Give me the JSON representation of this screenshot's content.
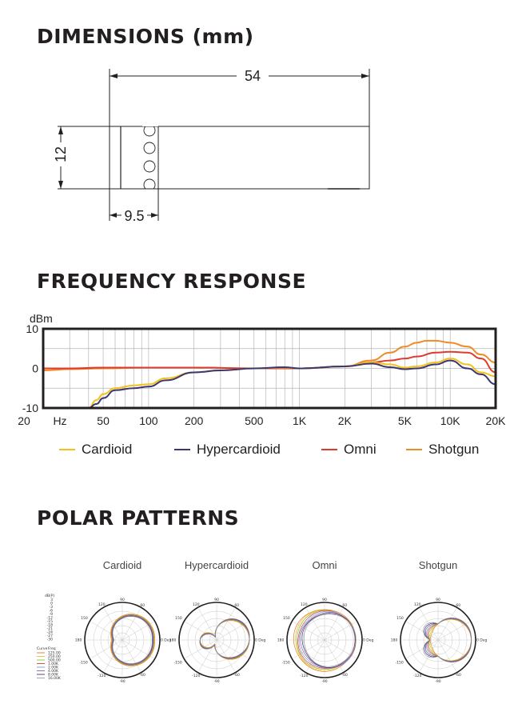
{
  "dimensions": {
    "title": "DIMENSIONS (mm)",
    "length": "54",
    "height": "12",
    "cap": "9.5"
  },
  "frequency": {
    "title": "FREQUENCY RESPONSE",
    "unit": "dBm",
    "y_ticks": [
      "10",
      "0",
      "-10"
    ],
    "x_ticks": [
      "20",
      "Hz",
      "50",
      "100",
      "200",
      "500",
      "1K",
      "2K",
      "5K",
      "10K",
      "20K"
    ],
    "legend": [
      {
        "name": "Cardioid",
        "color": "#f2c21b"
      },
      {
        "name": "Hypercardioid",
        "color": "#3d3670"
      },
      {
        "name": "Omni",
        "color": "#e03a2f"
      },
      {
        "name": "Shotgun",
        "color": "#f08a24"
      }
    ]
  },
  "chart_data": {
    "type": "line",
    "title": "FREQUENCY RESPONSE",
    "ylabel": "dBm",
    "xlabel": "",
    "xscale": "log",
    "xlim": [
      20,
      20000
    ],
    "ylim": [
      -10,
      10
    ],
    "grid": true,
    "legend_position": "bottom",
    "series": [
      {
        "name": "Cardioid",
        "x": [
          40,
          45,
          50,
          60,
          80,
          100,
          130,
          200,
          300,
          500,
          800,
          1000,
          2000,
          3000,
          4000,
          5000,
          6000,
          8000,
          10000,
          13000,
          16000,
          20000
        ],
        "y": [
          -10,
          -8,
          -6.5,
          -5,
          -4.3,
          -4,
          -2.5,
          -1,
          -0.5,
          0,
          0.2,
          0,
          0.5,
          1.5,
          1,
          0.2,
          0.5,
          1.5,
          2.5,
          1,
          -1,
          -2
        ]
      },
      {
        "name": "Hypercardioid",
        "x": [
          40,
          45,
          50,
          60,
          80,
          100,
          130,
          200,
          300,
          500,
          800,
          1000,
          2000,
          3000,
          4000,
          5000,
          6000,
          8000,
          10000,
          13000,
          16000,
          20000
        ],
        "y": [
          -10,
          -9,
          -7.5,
          -5.5,
          -5,
          -4.6,
          -3,
          -1,
          -0.5,
          0,
          0.3,
          0,
          0.5,
          1.2,
          0.3,
          -0.2,
          0,
          1,
          2,
          0,
          -1.5,
          -4
        ]
      },
      {
        "name": "Omni",
        "x": [
          20,
          30,
          50,
          100,
          200,
          500,
          1000,
          2000,
          3000,
          4000,
          5000,
          6000,
          8000,
          10000,
          13000,
          16000,
          20000
        ],
        "y": [
          0,
          0,
          0.2,
          0.2,
          0.2,
          0,
          0,
          0.5,
          1.5,
          2,
          2.5,
          3,
          4,
          4.2,
          4,
          2.5,
          -1
        ]
      },
      {
        "name": "Shotgun",
        "x": [
          20,
          30,
          50,
          100,
          200,
          500,
          1000,
          2000,
          3000,
          4000,
          5000,
          6000,
          7000,
          8000,
          10000,
          13000,
          16000,
          20000
        ],
        "y": [
          -0.5,
          -0.2,
          0,
          0.2,
          0.2,
          0,
          0,
          0.5,
          2,
          4,
          5.5,
          6.5,
          7,
          7,
          6.5,
          5.5,
          3.5,
          1.5
        ]
      }
    ]
  },
  "polar": {
    "title": "POLAR PATTERNS",
    "patterns": [
      {
        "name": "Cardioid"
      },
      {
        "name": "Hypercardioid"
      },
      {
        "name": "Omni"
      },
      {
        "name": "Shotgun"
      }
    ],
    "angles": {
      "a90": "90",
      "a60": "60",
      "a120": "120",
      "a150": "150",
      "a180": "180",
      "a0": "0 Deg",
      "am150": "-150",
      "am120": "-120",
      "am90": "-90",
      "am60": "-60"
    },
    "key_header": "dB(P)",
    "key_levels": [
      "3",
      "0",
      "-3",
      "-6",
      "-9",
      "-12",
      "-15",
      "-18",
      "-21",
      "-24",
      "-27",
      "-30"
    ],
    "curve_header": [
      "Curve",
      "Freq"
    ],
    "curve_freqs": [
      "125.00",
      "250.00",
      "500.00",
      "1.00K",
      "2.00K",
      "4.00K",
      "8.00K",
      "16.00K"
    ],
    "curve_colors": [
      "#e07a2a",
      "#f2c21b",
      "#8cbf3f",
      "#e03a2f",
      "#6a9fd6",
      "#8e5ea8",
      "#3d3670",
      "#999999"
    ]
  }
}
